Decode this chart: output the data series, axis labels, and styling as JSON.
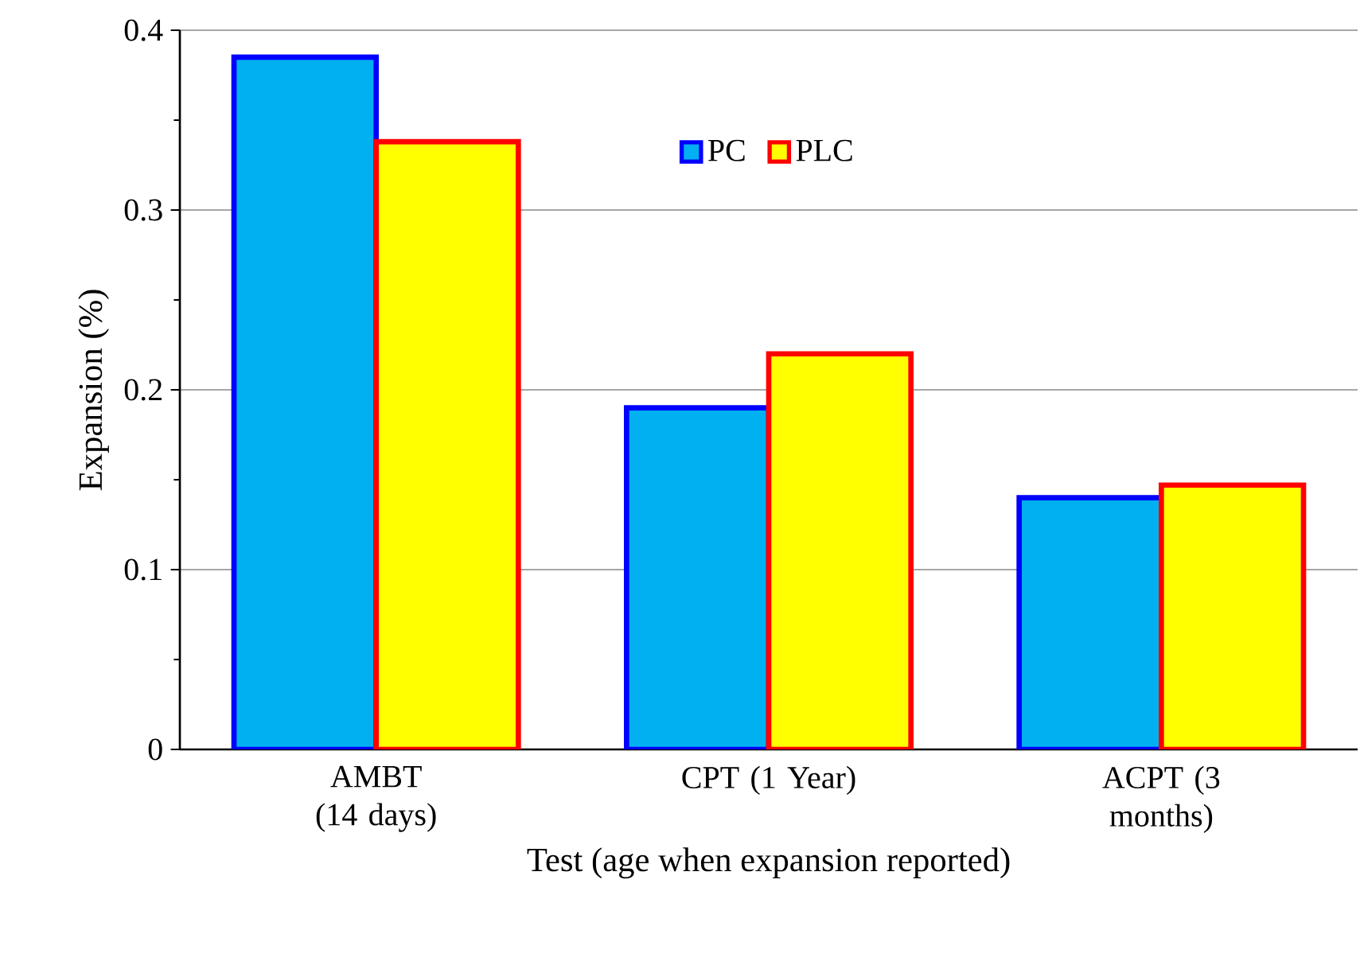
{
  "chart_data": {
    "type": "bar",
    "xlabel": "Test (age when expansion reported)",
    "ylabel": "Expansion (%)",
    "categories": [
      "AMBT (14 days)",
      "CPT (1 Year)",
      "ACPT (3 months)"
    ],
    "series": [
      {
        "name": "PC",
        "color": "#00b0f0",
        "values": [
          0.385,
          0.19,
          0.14
        ]
      },
      {
        "name": "PLC",
        "color": "#ffff00",
        "values": [
          0.338,
          0.22,
          0.147
        ]
      }
    ],
    "ylim": [
      0,
      0.4
    ],
    "yticks": [
      0,
      {
        "value": 0.05,
        "label": null
      },
      0.1,
      {
        "value": 0.15,
        "label": null
      },
      0.2,
      {
        "value": 0.25,
        "label": null
      },
      0.3,
      {
        "value": 0.35,
        "label": null
      },
      0.4
    ],
    "grid": "y",
    "legend": "top"
  }
}
